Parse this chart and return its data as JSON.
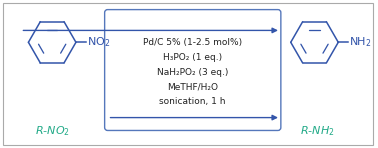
{
  "bg_color": "#ffffff",
  "outer_border_color": "#aaaaaa",
  "box_edge_color": "#5577bb",
  "arrow_color": "#3355aa",
  "mol_color": "#3355aa",
  "label_color": "#22aa88",
  "text_color": "#222222",
  "conditions": [
    "Pd/C 5% (1-2.5 mol%)",
    "H₃PO₂ (1 eq.)",
    "NaH₂PO₂ (3 eq.)",
    "MeTHF/H₂O",
    "sonication, 1 h"
  ],
  "label_left": "R-NO₂",
  "label_right": "R-NH₂",
  "figsize": [
    3.78,
    1.48
  ],
  "dpi": 100
}
